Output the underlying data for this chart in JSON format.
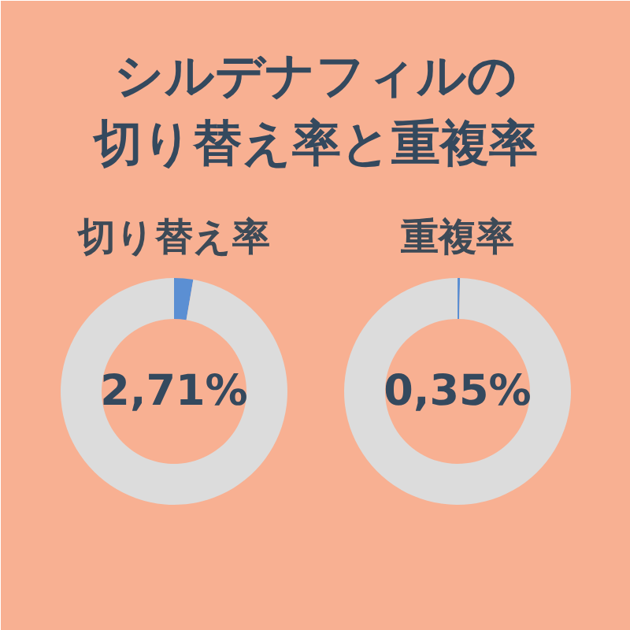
{
  "chart_data": [
    {
      "type": "donut",
      "title": "シルデナフィルの切り替え率と重複率",
      "subtitle": "切り替え率",
      "categories": [
        null,
        null
      ],
      "values": [
        2.71,
        97.29
      ],
      "colors": [
        "#5b8fd3",
        "#dcdcdc"
      ],
      "value_labels": [
        "2,71%",
        null
      ]
    },
    {
      "type": "donut",
      "subtitle": "重複率",
      "categories": [
        null,
        null
      ],
      "values": [
        0.35,
        99.65
      ],
      "colors": [
        "#5b8fd3",
        "#dcdcdc"
      ],
      "value_labels": [
        "0,35%",
        null
      ]
    }
  ]
}
